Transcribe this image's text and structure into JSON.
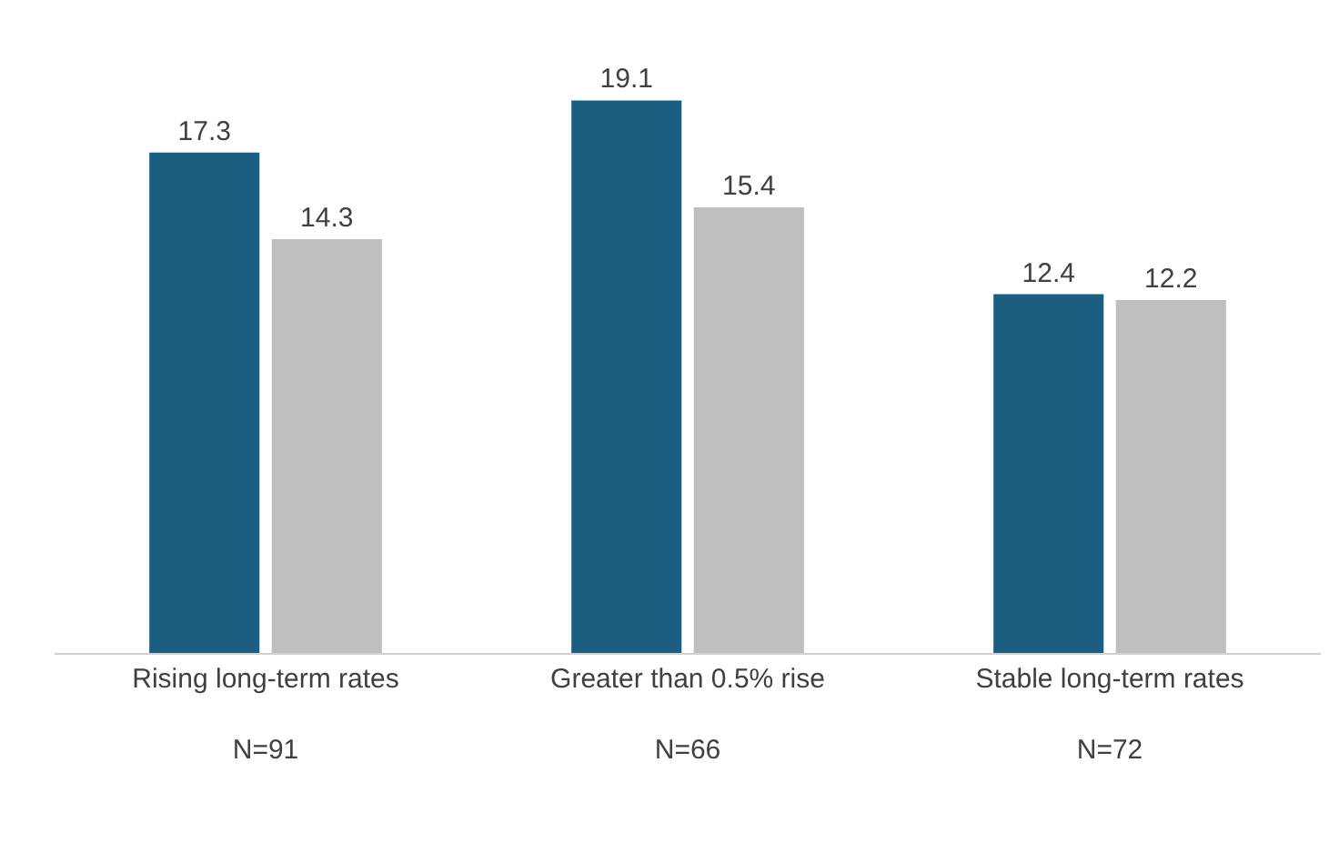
{
  "chart_data": {
    "type": "bar",
    "categories": [
      "Rising long-term rates\n\nN=91",
      "Greater than 0.5% rise\n\nN=66",
      "Stable long-term rates\n\nN=72"
    ],
    "series": [
      {
        "color": "#1b5e80",
        "values": [
          17.3,
          19.1,
          12.4
        ]
      },
      {
        "color": "#bfbfbf",
        "values": [
          14.3,
          15.4,
          12.2
        ]
      }
    ],
    "data_labels": true
  }
}
